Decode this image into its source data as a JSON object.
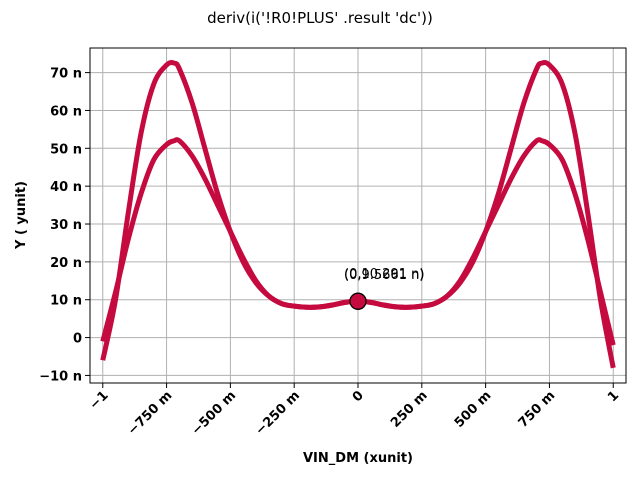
{
  "chart_data": {
    "type": "line",
    "title": "deriv(i('!R0!PLUS' .result 'dc'))",
    "xlabel": "VIN_DM (xunit)",
    "ylabel": "Y ( yunit)",
    "xlim": [
      -1.05,
      1.05
    ],
    "ylim": [
      -12,
      76.5
    ],
    "grid": true,
    "x_ticks": [
      -1,
      -0.75,
      -0.5,
      -0.25,
      0,
      0.25,
      0.5,
      0.75,
      1
    ],
    "x_tick_labels": [
      "−1",
      "−750 m",
      "−500 m",
      "−250 m",
      "0",
      "250 m",
      "500 m",
      "750 m",
      "1"
    ],
    "y_ticks": [
      -10,
      0,
      10,
      20,
      30,
      40,
      50,
      60,
      70
    ],
    "y_tick_labels": [
      "−10 n",
      "0",
      "10 n",
      "20 n",
      "30 n",
      "40 n",
      "50 n",
      "60 n",
      "70 n"
    ],
    "line_color": "#c40a3e",
    "marker_color": "#c40a3e",
    "x": [
      -1.0,
      -0.95,
      -0.9,
      -0.85,
      -0.8,
      -0.75,
      -0.72,
      -0.7,
      -0.65,
      -0.6,
      -0.55,
      -0.5,
      -0.45,
      -0.4,
      -0.35,
      -0.3,
      -0.25,
      -0.2,
      -0.15,
      -0.1,
      -0.05,
      0.0,
      0.05,
      0.1,
      0.15,
      0.2,
      0.25,
      0.3,
      0.35,
      0.4,
      0.45,
      0.5,
      0.55,
      0.6,
      0.65,
      0.7,
      0.72,
      0.75,
      0.8,
      0.85,
      0.9,
      0.95,
      1.0
    ],
    "series": [
      {
        "values": [
          -6,
          10,
          33,
          54,
          67,
          72,
          72.5,
          71,
          62,
          50,
          38,
          28,
          20,
          14.5,
          11,
          9,
          8.3,
          8.0,
          8.1,
          8.6,
          9.3,
          9.6,
          9.3,
          8.6,
          8.1,
          8.0,
          8.3,
          9,
          11,
          14.5,
          20,
          28,
          38,
          50,
          62,
          71,
          72.5,
          72,
          67,
          54,
          33,
          10,
          -8
        ]
      },
      {
        "values": [
          -1,
          12,
          26,
          38,
          47,
          51,
          52,
          52,
          48,
          42,
          35,
          28,
          21,
          15,
          11,
          9,
          8.3,
          8.0,
          8.1,
          8.6,
          9.3,
          9.6,
          9.3,
          8.6,
          8.1,
          8.0,
          8.3,
          9,
          11,
          15,
          21,
          28,
          35,
          42,
          48,
          52,
          52,
          51,
          47,
          38,
          26,
          12,
          -2
        ]
      }
    ],
    "annotations": [
      {
        "x": 0,
        "y": 9.6,
        "text": "(0,9.5661 n)"
      },
      {
        "x": 0,
        "y": 9.6,
        "text": "(0,10.291 n)"
      }
    ]
  }
}
